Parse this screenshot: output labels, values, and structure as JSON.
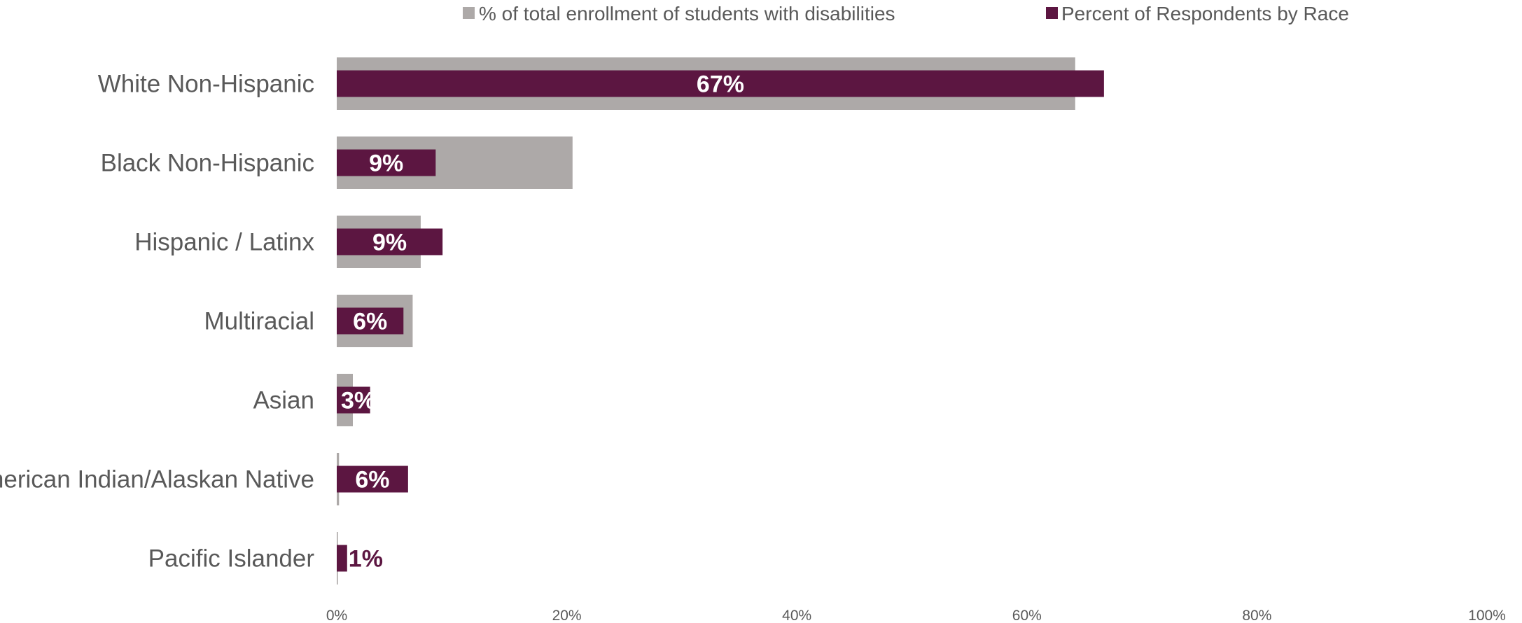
{
  "chart_data": {
    "type": "bar",
    "orientation": "horizontal",
    "categories": [
      "White Non-Hispanic",
      "Black Non-Hispanic",
      "Hispanic / Latinx",
      "Multiracial",
      "Asian",
      "American Indian/Alaskan Native",
      "Pacific Islander"
    ],
    "series": [
      {
        "name": "% of total enrollment of students with disabilities",
        "color": "#ADA9A8",
        "values": [
          64.2,
          20.5,
          7.3,
          6.6,
          1.4,
          0.2,
          0.1
        ]
      },
      {
        "name": "Percent of Respondents by Race",
        "color": "#5C1641",
        "values": [
          66.7,
          8.6,
          9.2,
          5.8,
          2.9,
          6.2,
          0.9
        ],
        "data_labels": [
          "67%",
          "9%",
          "9%",
          "6%",
          "3%",
          "6%",
          "1%"
        ]
      }
    ],
    "xlim": [
      0,
      100
    ],
    "x_ticks": [
      "0%",
      "20%",
      "40%",
      "60%",
      "80%",
      "100%"
    ],
    "legend_position": "top",
    "grid": false,
    "title": "",
    "xlabel": "",
    "ylabel": ""
  }
}
